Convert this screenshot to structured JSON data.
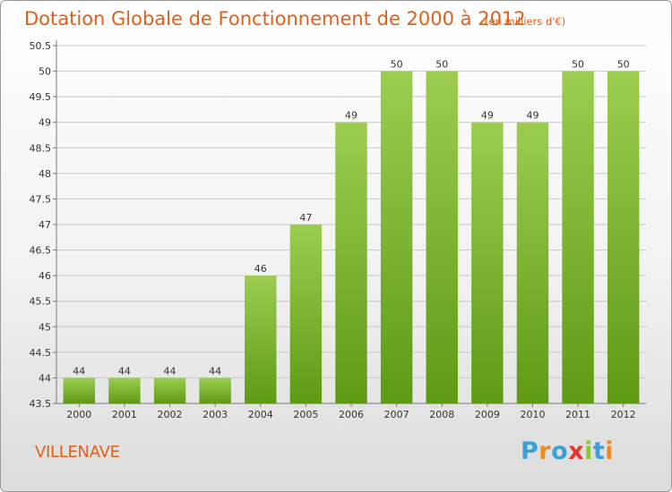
{
  "chart_data": {
    "type": "bar",
    "title": "Dotation Globale de Fonctionnement de 2000 à 2012",
    "subtitle": "(en milliers d'€)",
    "categories": [
      "2000",
      "2001",
      "2002",
      "2003",
      "2004",
      "2005",
      "2006",
      "2007",
      "2008",
      "2009",
      "2010",
      "2011",
      "2012"
    ],
    "values": [
      44,
      44,
      44,
      44,
      46,
      47,
      49,
      50,
      50,
      49,
      49,
      50,
      50
    ],
    "ylim": [
      43.5,
      50.5
    ],
    "yticks": [
      "43.5",
      "44",
      "44.5",
      "45",
      "45.5",
      "46",
      "46.5",
      "47",
      "47.5",
      "48",
      "48.5",
      "49",
      "49.5",
      "50",
      "50.5"
    ],
    "grid": true,
    "bar_color_top": "#9ccd50",
    "bar_color_bottom": "#5e9a14"
  },
  "footer": {
    "place": "VILLENAVE",
    "logo": [
      "P",
      "r",
      "o",
      "x",
      "i",
      "t",
      "i"
    ],
    "logo_colors": [
      "#3aa0d8",
      "#f08a1c",
      "#3aa0d8",
      "#e8352a",
      "#8cc43c",
      "#3aa0d8",
      "#f08a1c"
    ]
  },
  "accent_color": "#e0601a"
}
